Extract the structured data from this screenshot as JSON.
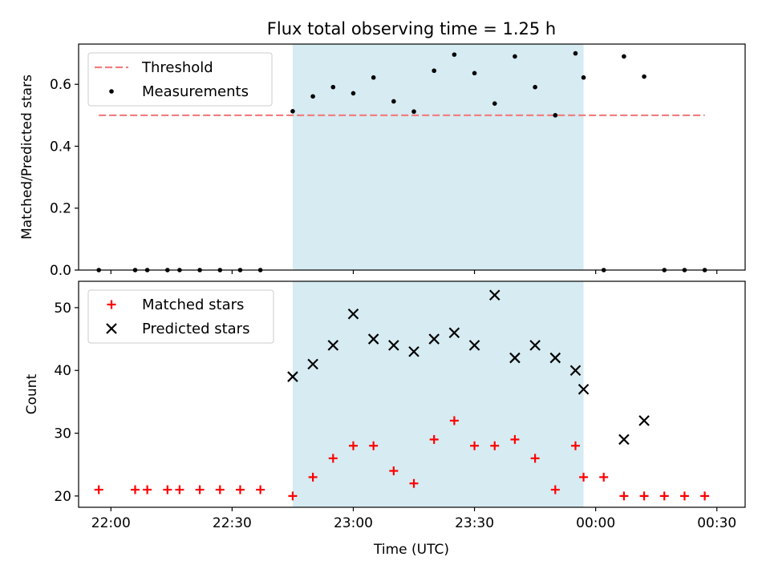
{
  "chart_data": [
    {
      "type": "scatter",
      "title": "Flux total observing time = 1.25 h",
      "xlabel": "",
      "ylabel": "Matched/Predicted stars",
      "xlim": [
        "21:52",
        "00:37"
      ],
      "ylim": [
        0,
        0.73
      ],
      "yticks": [
        0,
        0.2,
        0.4,
        0.6
      ],
      "ytick_labels": [
        "0.0",
        "0.2",
        "0.4",
        "0.6"
      ],
      "shaded_span": [
        "22:45",
        "23:57"
      ],
      "threshold": {
        "name": "Threshold",
        "value": 0.5,
        "x_start": "21:57",
        "x_end": "00:27",
        "color": "#f08080"
      },
      "legend": [
        "Threshold",
        "Measurements"
      ],
      "legend_position": "upper-left",
      "series": [
        {
          "name": "Measurements",
          "marker": "dot",
          "color": "#000000",
          "x": [
            "21:57",
            "22:06",
            "22:09",
            "22:14",
            "22:17",
            "22:22",
            "22:27",
            "22:32",
            "22:37",
            "22:45",
            "22:50",
            "22:55",
            "23:00",
            "23:05",
            "23:10",
            "23:15",
            "23:20",
            "23:25",
            "23:30",
            "23:35",
            "23:40",
            "23:45",
            "23:50",
            "23:55",
            "23:57",
            "00:02",
            "00:07",
            "00:12",
            "00:17",
            "00:22",
            "00:27"
          ],
          "y": [
            0,
            0,
            0,
            0,
            0,
            0,
            0,
            0,
            0,
            0.513,
            0.561,
            0.591,
            0.571,
            0.622,
            0.545,
            0.512,
            0.644,
            0.696,
            0.636,
            0.538,
            0.69,
            0.591,
            0.5,
            0.7,
            0.622,
            0,
            0.69,
            0.625,
            0,
            0,
            0
          ]
        }
      ]
    },
    {
      "type": "scatter",
      "title": "",
      "xlabel": "Time (UTC)",
      "ylabel": "Count",
      "xlim": [
        "21:52",
        "00:37"
      ],
      "ylim": [
        18.2,
        54.2
      ],
      "yticks": [
        20,
        30,
        40,
        50
      ],
      "xticks": [
        "22:00",
        "22:30",
        "23:00",
        "23:30",
        "00:00",
        "00:30"
      ],
      "shaded_span": [
        "22:45",
        "23:57"
      ],
      "legend": [
        "Matched stars",
        "Predicted stars"
      ],
      "legend_position": "upper-left",
      "series": [
        {
          "name": "Matched stars",
          "marker": "plus",
          "color": "#ff0000",
          "x": [
            "21:57",
            "22:06",
            "22:09",
            "22:14",
            "22:17",
            "22:22",
            "22:27",
            "22:32",
            "22:37",
            "22:45",
            "22:50",
            "22:55",
            "23:00",
            "23:05",
            "23:10",
            "23:15",
            "23:20",
            "23:25",
            "23:30",
            "23:35",
            "23:40",
            "23:45",
            "23:50",
            "23:55",
            "23:57",
            "00:02",
            "00:07",
            "00:12",
            "00:17",
            "00:22",
            "00:27"
          ],
          "y": [
            21,
            21,
            21,
            21,
            21,
            21,
            21,
            21,
            21,
            20,
            23,
            26,
            28,
            28,
            24,
            22,
            29,
            32,
            28,
            28,
            29,
            26,
            21,
            28,
            23,
            23,
            20,
            20,
            20,
            20,
            20
          ]
        },
        {
          "name": "Predicted stars",
          "marker": "x",
          "color": "#000000",
          "x": [
            "22:45",
            "22:50",
            "22:55",
            "23:00",
            "23:05",
            "23:10",
            "23:15",
            "23:20",
            "23:25",
            "23:30",
            "23:35",
            "23:40",
            "23:45",
            "23:50",
            "23:55",
            "23:57",
            "00:07",
            "00:12"
          ],
          "y": [
            39,
            41,
            44,
            49,
            45,
            44,
            43,
            45,
            46,
            44,
            52,
            42,
            44,
            42,
            40,
            37,
            29,
            32
          ]
        }
      ]
    }
  ]
}
